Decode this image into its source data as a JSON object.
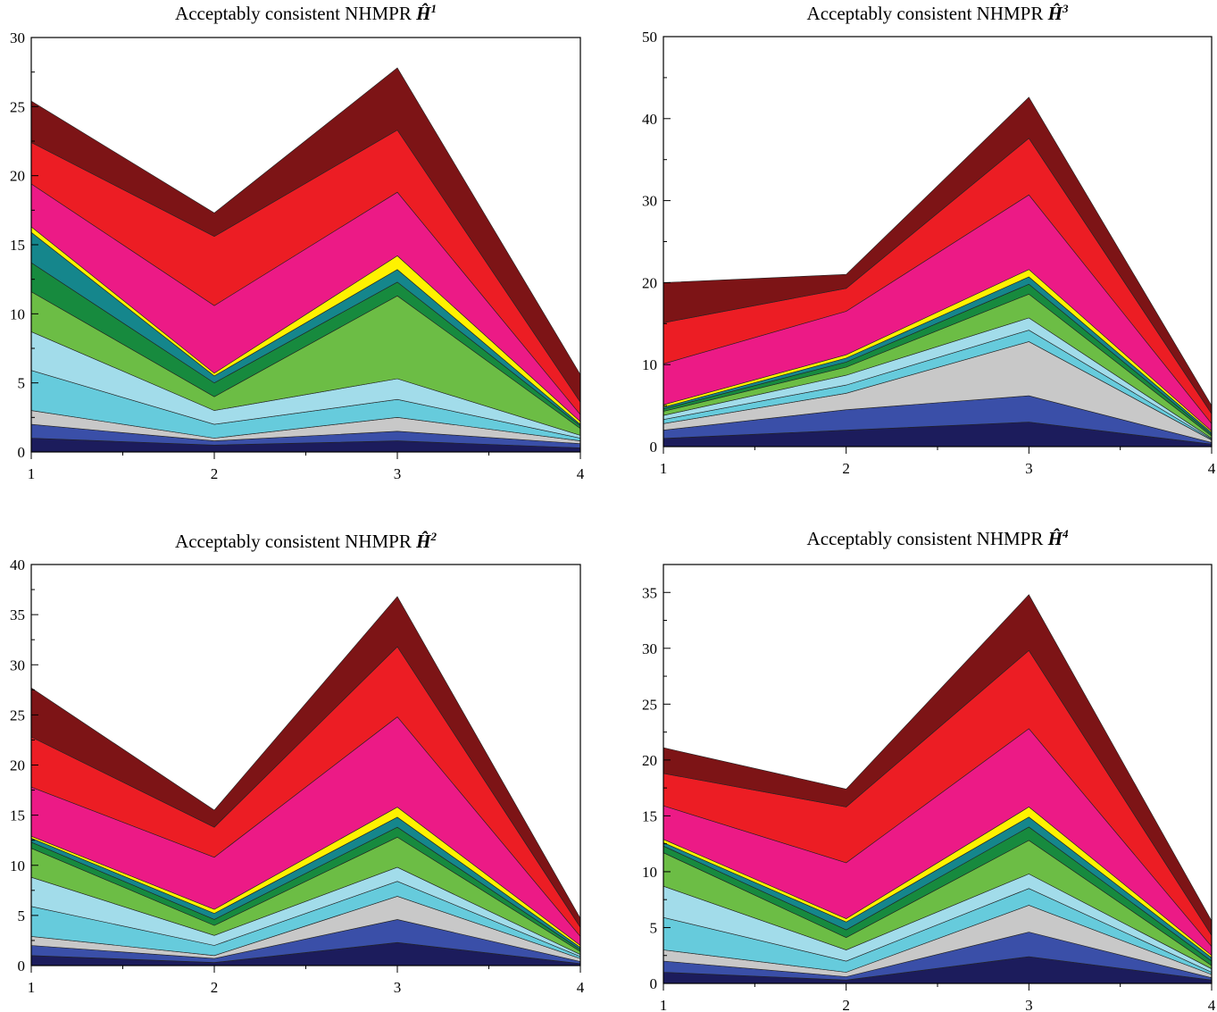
{
  "chart_data": [
    {
      "type": "area",
      "title": "Acceptably consistent NHMPR ",
      "title_symbol": "Ĥ",
      "title_superscript": "1",
      "x": [
        1,
        2,
        3,
        4
      ],
      "xticks": [
        "1",
        "2",
        "3",
        "4"
      ],
      "xlim": [
        1,
        4
      ],
      "ylim": [
        0,
        30
      ],
      "yticks": [
        "0",
        "5",
        "10",
        "15",
        "20",
        "25",
        "30"
      ],
      "stacked": true,
      "grid": false,
      "cumulative": [
        [
          1.0,
          0.5,
          0.8,
          0.3
        ],
        [
          2.0,
          0.8,
          1.5,
          0.6
        ],
        [
          3.0,
          1.0,
          2.5,
          0.8
        ],
        [
          5.9,
          2.0,
          3.8,
          1.0
        ],
        [
          8.7,
          3.0,
          5.3,
          1.2
        ],
        [
          11.6,
          4.0,
          11.3,
          1.7
        ],
        [
          13.7,
          5.0,
          12.3,
          1.9
        ],
        [
          15.9,
          5.5,
          13.2,
          2.0
        ],
        [
          16.3,
          5.7,
          14.2,
          2.2
        ],
        [
          19.4,
          10.6,
          18.8,
          2.7
        ],
        [
          22.4,
          15.6,
          23.3,
          3.6
        ],
        [
          25.4,
          17.3,
          27.8,
          5.6
        ]
      ]
    },
    {
      "type": "area",
      "title": "Acceptably consistent NHMPR ",
      "title_symbol": "Ĥ",
      "title_superscript": "3",
      "x": [
        1,
        2,
        3,
        4
      ],
      "xticks": [
        "1",
        "2",
        "3",
        "4"
      ],
      "xlim": [
        1,
        4
      ],
      "ylim": [
        0,
        50
      ],
      "yticks": [
        "0",
        "10",
        "20",
        "30",
        "40",
        "50"
      ],
      "stacked": true,
      "grid": false,
      "cumulative": [
        [
          1.0,
          2.0,
          3.0,
          0.3
        ],
        [
          2.0,
          4.5,
          6.2,
          0.5
        ],
        [
          2.8,
          6.5,
          12.8,
          0.8
        ],
        [
          3.3,
          7.5,
          14.2,
          0.9
        ],
        [
          3.8,
          8.7,
          15.7,
          1.0
        ],
        [
          4.3,
          9.7,
          18.6,
          1.3
        ],
        [
          4.6,
          10.3,
          19.8,
          1.5
        ],
        [
          4.8,
          10.8,
          20.7,
          1.7
        ],
        [
          5.1,
          11.2,
          21.6,
          1.9
        ],
        [
          10.1,
          16.5,
          30.7,
          2.8
        ],
        [
          15.1,
          19.3,
          37.6,
          4.0
        ],
        [
          20.0,
          21.0,
          42.6,
          5.0
        ]
      ]
    },
    {
      "type": "area",
      "title": "Acceptably consistent NHMPR ",
      "title_symbol": "Ĥ",
      "title_superscript": "2",
      "x": [
        1,
        2,
        3,
        4
      ],
      "xticks": [
        "1",
        "2",
        "3",
        "4"
      ],
      "xlim": [
        1,
        4
      ],
      "ylim": [
        0,
        40
      ],
      "yticks": [
        "0",
        "5",
        "10",
        "15",
        "20",
        "25",
        "30",
        "35",
        "40"
      ],
      "stacked": true,
      "grid": false,
      "cumulative": [
        [
          1.0,
          0.3,
          2.3,
          0.2
        ],
        [
          2.0,
          0.7,
          4.6,
          0.4
        ],
        [
          2.9,
          1.0,
          6.9,
          0.7
        ],
        [
          5.9,
          2.0,
          8.4,
          0.9
        ],
        [
          8.8,
          3.0,
          9.8,
          1.1
        ],
        [
          11.7,
          4.0,
          12.8,
          1.4
        ],
        [
          12.3,
          4.6,
          13.8,
          1.6
        ],
        [
          12.7,
          5.2,
          14.8,
          1.8
        ],
        [
          12.9,
          5.6,
          15.8,
          2.0
        ],
        [
          17.8,
          10.8,
          24.8,
          2.9
        ],
        [
          22.8,
          13.8,
          31.8,
          3.8
        ],
        [
          27.7,
          15.5,
          36.8,
          4.7
        ]
      ]
    },
    {
      "type": "area",
      "title": "Acceptably consistent NHMPR ",
      "title_symbol": "Ĥ",
      "title_superscript": "4",
      "x": [
        1,
        2,
        3,
        4
      ],
      "xticks": [
        "1",
        "2",
        "3",
        "4"
      ],
      "xlim": [
        1,
        4
      ],
      "ylim": [
        0,
        37.5
      ],
      "yticks": [
        "0",
        "5",
        "10",
        "15",
        "20",
        "25",
        "30",
        "35"
      ],
      "stacked": true,
      "grid": false,
      "cumulative": [
        [
          1.0,
          0.3,
          2.4,
          0.3
        ],
        [
          2.0,
          0.6,
          4.6,
          0.5
        ],
        [
          3.0,
          1.0,
          7.0,
          0.8
        ],
        [
          5.9,
          2.0,
          8.5,
          1.0
        ],
        [
          8.7,
          3.0,
          9.8,
          1.3
        ],
        [
          11.7,
          4.1,
          12.8,
          1.6
        ],
        [
          12.3,
          4.8,
          14.0,
          2.0
        ],
        [
          12.6,
          5.5,
          14.9,
          2.3
        ],
        [
          12.9,
          5.8,
          15.8,
          2.5
        ],
        [
          15.9,
          10.8,
          22.8,
          3.3
        ],
        [
          18.8,
          15.8,
          29.8,
          4.3
        ],
        [
          21.1,
          17.4,
          34.8,
          5.6
        ]
      ]
    }
  ],
  "colors": {
    "layers": [
      "#1c1c5c",
      "#3a4fa8",
      "#c8c8c8",
      "#66cbdc",
      "#a2dcea",
      "#6cbd45",
      "#178a3e",
      "#15868c",
      "#fff200",
      "#ec1a86",
      "#ec1d24",
      "#7d1416"
    ],
    "axis": "#000000",
    "background": "#ffffff"
  }
}
